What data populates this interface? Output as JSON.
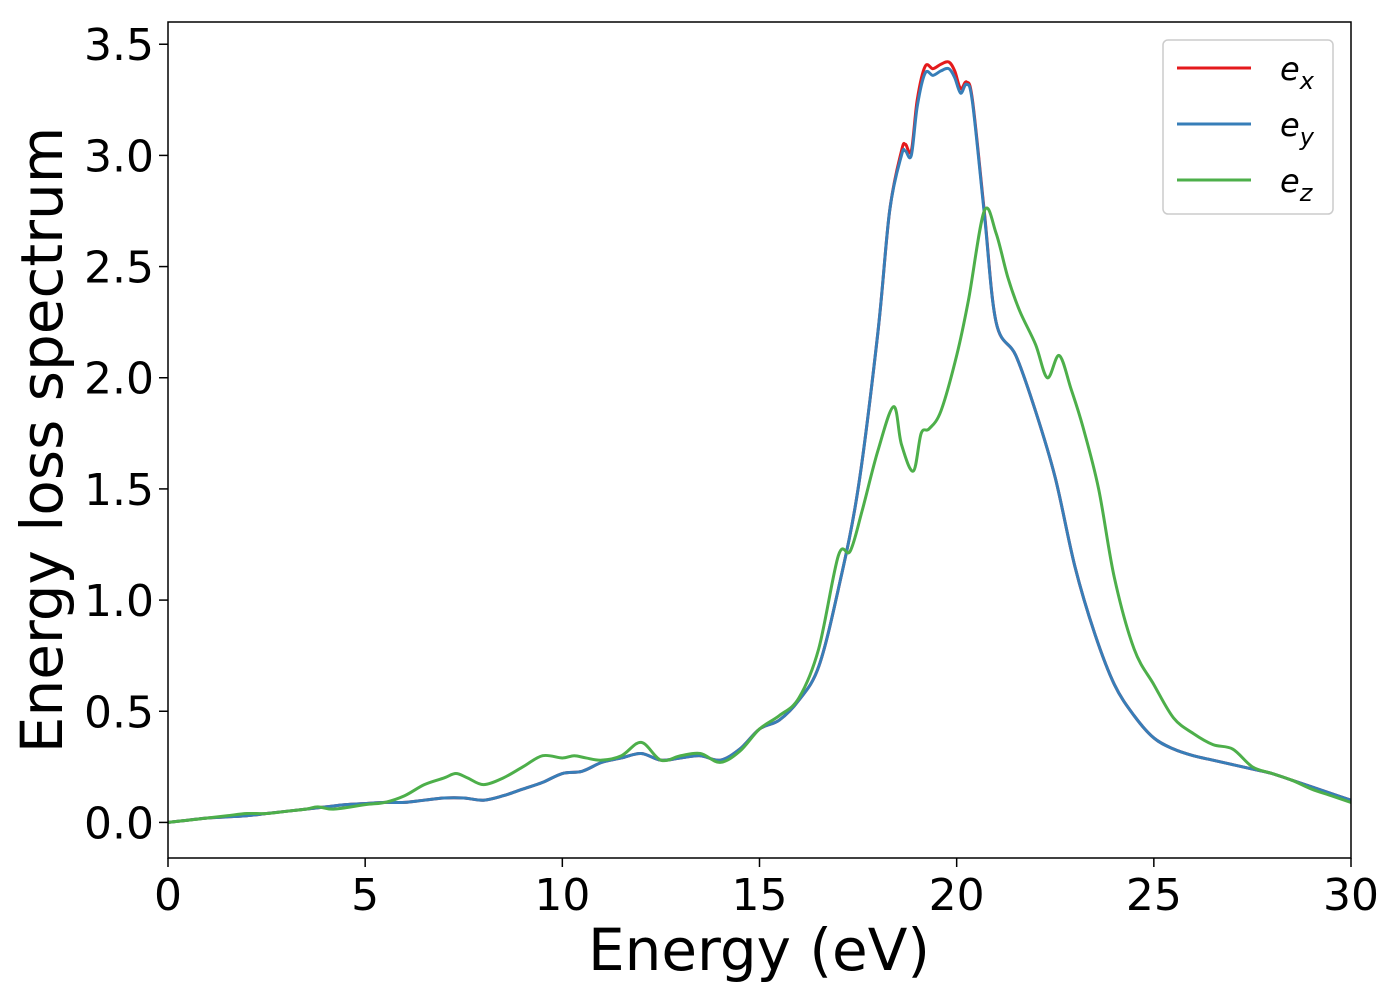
{
  "chart_data": {
    "type": "line",
    "xlabel": "Energy (eV)",
    "ylabel": "Energy loss spectrum",
    "xlim": [
      0,
      30
    ],
    "ylim": [
      -0.16,
      3.6
    ],
    "xticks": [
      "0",
      "5",
      "10",
      "15",
      "20",
      "25",
      "30"
    ],
    "yticks": [
      "0.0",
      "0.5",
      "1.0",
      "1.5",
      "2.0",
      "2.5",
      "3.0",
      "3.5"
    ],
    "grid": false,
    "legend_position": "top-right",
    "series": [
      {
        "name": "e_x",
        "label_base": "e",
        "label_sub": "x",
        "color": "#e41a1c",
        "x": [
          0,
          0.5,
          1,
          1.5,
          2,
          2.5,
          3,
          3.5,
          4,
          4.5,
          5,
          5.5,
          6,
          6.5,
          7,
          7.5,
          8,
          8.5,
          9,
          9.5,
          10,
          10.5,
          11,
          11.5,
          12,
          12.5,
          13,
          13.5,
          14,
          14.5,
          15,
          15.5,
          16,
          16.5,
          17,
          17.5,
          18,
          18.3,
          18.6,
          18.7,
          18.85,
          19,
          19.2,
          19.4,
          19.6,
          19.8,
          19.95,
          20.1,
          20.25,
          20.4,
          20.7,
          21,
          21.5,
          22,
          22.5,
          23,
          23.5,
          24,
          24.5,
          25,
          25.5,
          26,
          26.5,
          27,
          27.5,
          28,
          28.5,
          29,
          29.5,
          30
        ],
        "y": [
          0.0,
          0.01,
          0.02,
          0.025,
          0.03,
          0.04,
          0.05,
          0.06,
          0.07,
          0.08,
          0.085,
          0.09,
          0.09,
          0.1,
          0.11,
          0.11,
          0.1,
          0.12,
          0.15,
          0.18,
          0.22,
          0.23,
          0.27,
          0.29,
          0.31,
          0.28,
          0.29,
          0.3,
          0.28,
          0.33,
          0.42,
          0.46,
          0.55,
          0.7,
          1.05,
          1.5,
          2.2,
          2.75,
          3.02,
          3.05,
          3.02,
          3.25,
          3.4,
          3.39,
          3.41,
          3.42,
          3.38,
          3.3,
          3.33,
          3.25,
          2.75,
          2.25,
          2.1,
          1.85,
          1.55,
          1.15,
          0.85,
          0.62,
          0.48,
          0.38,
          0.33,
          0.3,
          0.28,
          0.26,
          0.24,
          0.22,
          0.19,
          0.16,
          0.13,
          0.1
        ]
      },
      {
        "name": "e_y",
        "label_base": "e",
        "label_sub": "y",
        "color": "#377eb8",
        "x": [
          0,
          0.5,
          1,
          1.5,
          2,
          2.5,
          3,
          3.5,
          4,
          4.5,
          5,
          5.5,
          6,
          6.5,
          7,
          7.5,
          8,
          8.5,
          9,
          9.5,
          10,
          10.5,
          11,
          11.5,
          12,
          12.5,
          13,
          13.5,
          14,
          14.5,
          15,
          15.5,
          16,
          16.5,
          17,
          17.5,
          18,
          18.3,
          18.6,
          18.7,
          18.85,
          19,
          19.2,
          19.4,
          19.6,
          19.8,
          19.95,
          20.1,
          20.25,
          20.4,
          20.7,
          21,
          21.5,
          22,
          22.5,
          23,
          23.5,
          24,
          24.5,
          25,
          25.5,
          26,
          26.5,
          27,
          27.5,
          28,
          28.5,
          29,
          29.5,
          30
        ],
        "y": [
          0.0,
          0.01,
          0.02,
          0.025,
          0.03,
          0.04,
          0.05,
          0.06,
          0.07,
          0.08,
          0.085,
          0.09,
          0.09,
          0.1,
          0.11,
          0.11,
          0.1,
          0.12,
          0.15,
          0.18,
          0.22,
          0.23,
          0.27,
          0.29,
          0.31,
          0.28,
          0.29,
          0.3,
          0.28,
          0.33,
          0.42,
          0.46,
          0.55,
          0.7,
          1.05,
          1.5,
          2.2,
          2.75,
          3.0,
          3.02,
          3.0,
          3.22,
          3.37,
          3.36,
          3.38,
          3.39,
          3.35,
          3.28,
          3.32,
          3.24,
          2.74,
          2.25,
          2.1,
          1.85,
          1.55,
          1.15,
          0.85,
          0.62,
          0.48,
          0.38,
          0.33,
          0.3,
          0.28,
          0.26,
          0.24,
          0.22,
          0.19,
          0.16,
          0.13,
          0.1
        ]
      },
      {
        "name": "e_z",
        "label_base": "e",
        "label_sub": "z",
        "color": "#4daf4a",
        "x": [
          0,
          0.5,
          1,
          1.5,
          2,
          2.5,
          3,
          3.5,
          3.8,
          4.2,
          5,
          5.5,
          6,
          6.5,
          7,
          7.3,
          7.6,
          8,
          8.5,
          9,
          9.5,
          10,
          10.3,
          10.6,
          11,
          11.5,
          12,
          12.5,
          13,
          13.5,
          14,
          14.5,
          15,
          15.5,
          16,
          16.5,
          17,
          17.3,
          17.6,
          18,
          18.4,
          18.6,
          18.9,
          19.1,
          19.3,
          19.6,
          20,
          20.3,
          20.7,
          21,
          21.3,
          21.6,
          22,
          22.3,
          22.6,
          22.9,
          23.2,
          23.6,
          24,
          24.5,
          25,
          25.5,
          26,
          26.5,
          27,
          27.5,
          28,
          28.5,
          29,
          29.5,
          30
        ],
        "y": [
          0.0,
          0.01,
          0.02,
          0.03,
          0.04,
          0.04,
          0.05,
          0.06,
          0.07,
          0.06,
          0.08,
          0.09,
          0.12,
          0.17,
          0.2,
          0.22,
          0.2,
          0.17,
          0.2,
          0.25,
          0.3,
          0.29,
          0.3,
          0.29,
          0.28,
          0.3,
          0.36,
          0.28,
          0.3,
          0.31,
          0.27,
          0.32,
          0.42,
          0.48,
          0.56,
          0.78,
          1.2,
          1.22,
          1.4,
          1.67,
          1.87,
          1.7,
          1.58,
          1.75,
          1.77,
          1.85,
          2.1,
          2.35,
          2.75,
          2.65,
          2.45,
          2.3,
          2.15,
          2.0,
          2.1,
          1.95,
          1.78,
          1.5,
          1.1,
          0.78,
          0.62,
          0.47,
          0.4,
          0.35,
          0.33,
          0.25,
          0.22,
          0.19,
          0.15,
          0.12,
          0.09
        ]
      }
    ]
  }
}
